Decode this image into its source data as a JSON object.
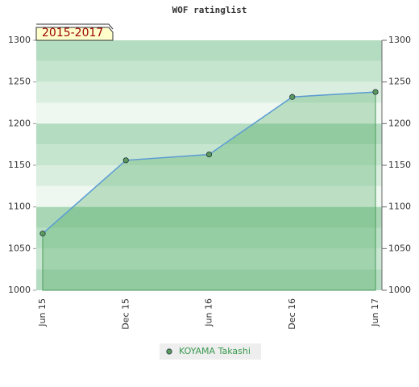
{
  "chart_data": {
    "type": "line",
    "title": "WOF ratinglist",
    "annotation": "2015-2017",
    "categories": [
      "Jun 15",
      "Dec 15",
      "Jun 16",
      "Dec 16",
      "Jun 17"
    ],
    "series": [
      {
        "name": "KOYAMA Takashi",
        "color": "#5a9a5a",
        "line_color": "#5b9bd5",
        "values": [
          1068,
          1156,
          1163,
          1232,
          1238
        ]
      }
    ],
    "ylim": [
      1000,
      1300
    ],
    "yticks": [
      1000,
      1050,
      1100,
      1150,
      1200,
      1250,
      1300
    ],
    "y2lim": [
      1000,
      1300
    ],
    "y2ticks": [
      1000,
      1050,
      1100,
      1150,
      1200,
      1250,
      1300
    ]
  }
}
